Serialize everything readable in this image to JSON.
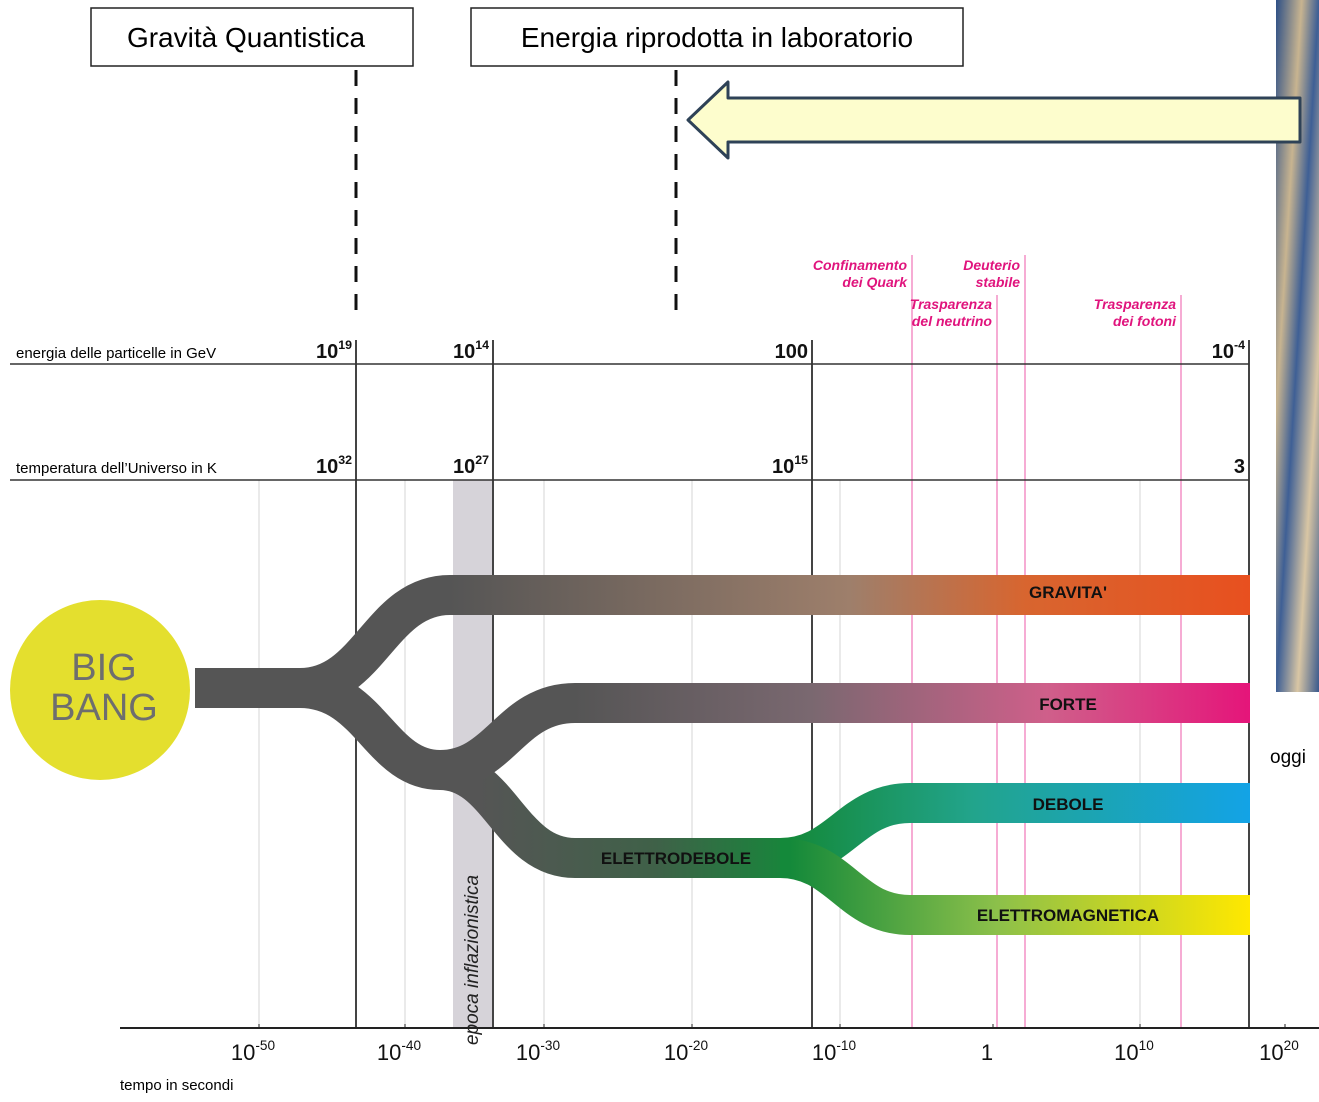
{
  "header": {
    "quantum_gravity": "Gravità Quantistica",
    "lab_energy": "Energia riprodotta in laboratorio"
  },
  "scales": {
    "energy": {
      "label": "energia delle particelle in GeV",
      "ticks": [
        {
          "base": "10",
          "exp": "19"
        },
        {
          "base": "10",
          "exp": "14"
        },
        {
          "base": "100"
        },
        {
          "base": "10",
          "exp": "-4"
        }
      ]
    },
    "temperature": {
      "label": "temperatura dell’Universo in K",
      "ticks": [
        {
          "base": "10",
          "exp": "32"
        },
        {
          "base": "10",
          "exp": "27"
        },
        {
          "base": "10",
          "exp": "15"
        },
        {
          "base": "3"
        }
      ]
    }
  },
  "events": [
    {
      "lines": [
        "Confinamento",
        "dei Quark"
      ]
    },
    {
      "lines": [
        "Deuterio",
        "stabile"
      ]
    },
    {
      "lines": [
        "Trasparenza",
        "del neutrino"
      ]
    },
    {
      "lines": [
        "Trasparenza",
        "dei fotoni"
      ]
    }
  ],
  "big_bang": [
    "BIG",
    "BANG"
  ],
  "forces": {
    "gravity": "GRAVITA'",
    "strong": "FORTE",
    "weak": "DEBOLE",
    "electromagnetic": "ELETTROMAGNETICA",
    "electroweak": "ELETTRODEBOLE"
  },
  "inflation": "epoca inflazionistica",
  "today": "oggi",
  "time_axis": {
    "label": "tempo in secondi",
    "ticks": [
      {
        "base": "10",
        "exp": "-50"
      },
      {
        "base": "10",
        "exp": "-40"
      },
      {
        "base": "10",
        "exp": "-30"
      },
      {
        "base": "10",
        "exp": "-20"
      },
      {
        "base": "10",
        "exp": "-10"
      },
      {
        "base": "1"
      },
      {
        "base": "10",
        "exp": "10"
      },
      {
        "base": "10",
        "exp": "20"
      }
    ]
  }
}
